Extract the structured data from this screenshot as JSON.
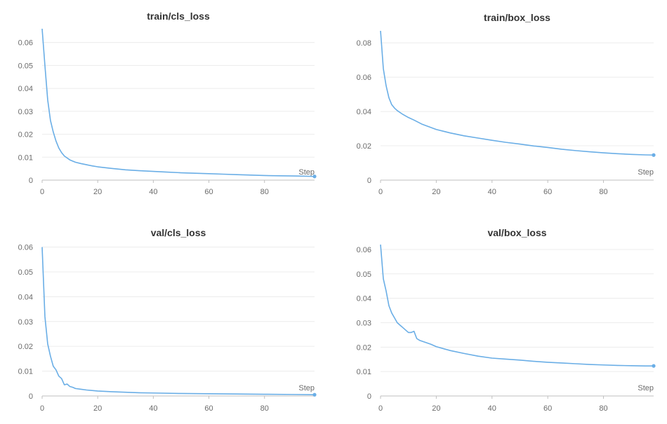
{
  "colors": {
    "series": "#6aaee6",
    "grid": "#ececec"
  },
  "chart_data": [
    {
      "type": "line",
      "title": "train/cls_loss",
      "xlabel": "Step",
      "ylabel": "",
      "xlim": [
        0,
        98
      ],
      "ylim": [
        0,
        0.066
      ],
      "xticks": [
        0,
        20,
        40,
        60,
        80
      ],
      "yticks": [
        0,
        0.01,
        0.02,
        0.03,
        0.04,
        0.05,
        0.06
      ],
      "ytick_labels": [
        "0",
        "0.01",
        "0.02",
        "0.03",
        "0.04",
        "0.05",
        "0.06"
      ],
      "grid": true,
      "legend": "none",
      "x": [
        0,
        1,
        2,
        3,
        4,
        5,
        6,
        7,
        8,
        10,
        12,
        14,
        16,
        18,
        20,
        25,
        30,
        35,
        40,
        45,
        50,
        55,
        60,
        65,
        70,
        75,
        80,
        85,
        90,
        95,
        98
      ],
      "y": [
        0.066,
        0.05,
        0.035,
        0.026,
        0.021,
        0.017,
        0.014,
        0.012,
        0.0105,
        0.0088,
        0.0078,
        0.0072,
        0.0067,
        0.0062,
        0.0058,
        0.0051,
        0.0045,
        0.0041,
        0.0038,
        0.0035,
        0.0032,
        0.003,
        0.0028,
        0.0026,
        0.0024,
        0.0022,
        0.002,
        0.0019,
        0.0018,
        0.0017,
        0.0016
      ]
    },
    {
      "type": "line",
      "title": "train/box_loss",
      "xlabel": "Step",
      "ylabel": "",
      "xlim": [
        0,
        98
      ],
      "ylim": [
        0,
        0.087
      ],
      "xticks": [
        0,
        20,
        40,
        60,
        80
      ],
      "yticks": [
        0,
        0.02,
        0.04,
        0.06,
        0.08
      ],
      "ytick_labels": [
        "0",
        "0.02",
        "0.04",
        "0.06",
        "0.08"
      ],
      "grid": true,
      "legend": "none",
      "x": [
        0,
        1,
        2,
        3,
        4,
        5,
        6,
        8,
        10,
        12,
        15,
        20,
        25,
        30,
        35,
        40,
        45,
        50,
        55,
        60,
        65,
        70,
        75,
        80,
        85,
        90,
        95,
        98
      ],
      "y": [
        0.087,
        0.065,
        0.055,
        0.048,
        0.044,
        0.042,
        0.0405,
        0.0383,
        0.0365,
        0.035,
        0.0325,
        0.0295,
        0.0275,
        0.0258,
        0.0245,
        0.0232,
        0.022,
        0.021,
        0.0199,
        0.019,
        0.018,
        0.0172,
        0.0165,
        0.0159,
        0.0154,
        0.015,
        0.0147,
        0.0146
      ]
    },
    {
      "type": "line",
      "title": "val/cls_loss",
      "xlabel": "Step",
      "ylabel": "",
      "xlim": [
        0,
        98
      ],
      "ylim": [
        0,
        0.061
      ],
      "xticks": [
        0,
        20,
        40,
        60,
        80
      ],
      "yticks": [
        0,
        0.01,
        0.02,
        0.03,
        0.04,
        0.05,
        0.06
      ],
      "ytick_labels": [
        "0",
        "0.01",
        "0.02",
        "0.03",
        "0.04",
        "0.05",
        "0.06"
      ],
      "grid": true,
      "legend": "none",
      "x": [
        0,
        1,
        2,
        3,
        4,
        5,
        6,
        7,
        8,
        9,
        10,
        11,
        12,
        14,
        16,
        20,
        25,
        30,
        35,
        40,
        50,
        60,
        70,
        80,
        90,
        98
      ],
      "y": [
        0.06,
        0.032,
        0.021,
        0.016,
        0.012,
        0.0105,
        0.008,
        0.007,
        0.0045,
        0.0048,
        0.0038,
        0.0035,
        0.003,
        0.0027,
        0.0024,
        0.002,
        0.0017,
        0.0015,
        0.0013,
        0.0012,
        0.001,
        0.0009,
        0.0008,
        0.0007,
        0.0006,
        0.0005
      ]
    },
    {
      "type": "line",
      "title": "val/box_loss",
      "xlabel": "Step",
      "ylabel": "",
      "xlim": [
        0,
        98
      ],
      "ylim": [
        0,
        0.062
      ],
      "xticks": [
        0,
        20,
        40,
        60,
        80
      ],
      "yticks": [
        0,
        0.01,
        0.02,
        0.03,
        0.04,
        0.05,
        0.06
      ],
      "ytick_labels": [
        "0",
        "0.01",
        "0.02",
        "0.03",
        "0.04",
        "0.05",
        "0.06"
      ],
      "grid": true,
      "legend": "none",
      "x": [
        0,
        1,
        2,
        3,
        4,
        5,
        6,
        7,
        8,
        9,
        10,
        11,
        12,
        13,
        14,
        16,
        18,
        20,
        25,
        30,
        35,
        40,
        45,
        50,
        55,
        60,
        65,
        70,
        75,
        80,
        85,
        90,
        95,
        98
      ],
      "y": [
        0.062,
        0.048,
        0.043,
        0.037,
        0.034,
        0.032,
        0.03,
        0.029,
        0.028,
        0.027,
        0.026,
        0.026,
        0.0265,
        0.0235,
        0.0228,
        0.022,
        0.0212,
        0.0202,
        0.0186,
        0.0174,
        0.0163,
        0.0155,
        0.0151,
        0.0147,
        0.0142,
        0.0138,
        0.0135,
        0.0132,
        0.0129,
        0.0127,
        0.0125,
        0.0124,
        0.0123,
        0.0123
      ]
    }
  ]
}
